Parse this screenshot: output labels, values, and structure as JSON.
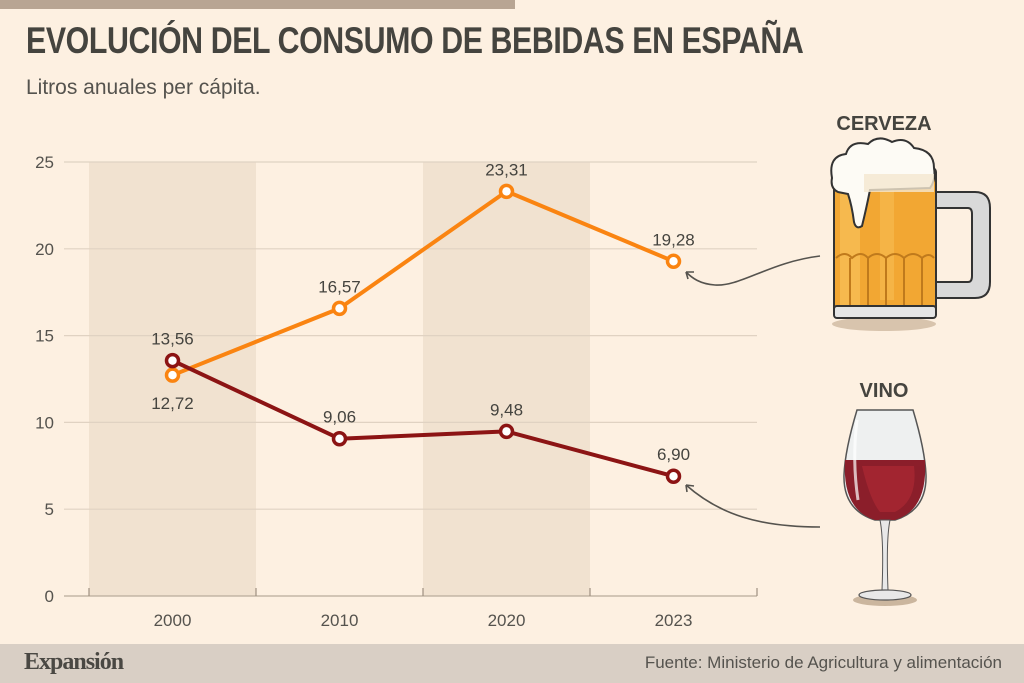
{
  "header": {
    "title": "EVOLUCIÓN DEL CONSUMO DE BEBIDAS EN ESPAÑA",
    "subtitle": "Litros anuales per cápita."
  },
  "footer": {
    "brand": "Expansión",
    "source": "Fuente: Ministerio de Agricultura y alimentación"
  },
  "colors": {
    "background": "#fdf0e1",
    "band": "#f1e2d0",
    "grid": "#e0d2c2",
    "beer": "#fa8411",
    "wine": "#8c1414",
    "footer": "#d9cfc5"
  },
  "illustrations": {
    "beer": {
      "label": "CERVEZA",
      "icon": "beer-mug-icon"
    },
    "wine": {
      "label": "VINO",
      "icon": "wine-glass-icon"
    }
  },
  "chart_data": {
    "type": "line",
    "title": "EVOLUCIÓN DEL CONSUMO DE BEBIDAS EN ESPAÑA",
    "subtitle": "Litros anuales per cápita.",
    "xlabel": "",
    "ylabel": "",
    "categories": [
      "2000",
      "2010",
      "2020",
      "2023"
    ],
    "ylim": [
      0,
      25
    ],
    "yticks": [
      0,
      5,
      10,
      15,
      20,
      25
    ],
    "grid": true,
    "legend": "right (illustrated labels with arrows)",
    "series": [
      {
        "name": "Cerveza",
        "values": [
          12.72,
          16.57,
          23.31,
          19.28
        ],
        "labels": [
          "12,72",
          "16,57",
          "23,31",
          "19,28"
        ],
        "label_pos": [
          "below",
          "above",
          "above",
          "above"
        ]
      },
      {
        "name": "Vino",
        "values": [
          13.56,
          9.06,
          9.48,
          6.9
        ],
        "labels": [
          "13,56",
          "9,06",
          "9,48",
          "6,90"
        ],
        "label_pos": [
          "above",
          "above",
          "above",
          "above"
        ]
      }
    ]
  }
}
